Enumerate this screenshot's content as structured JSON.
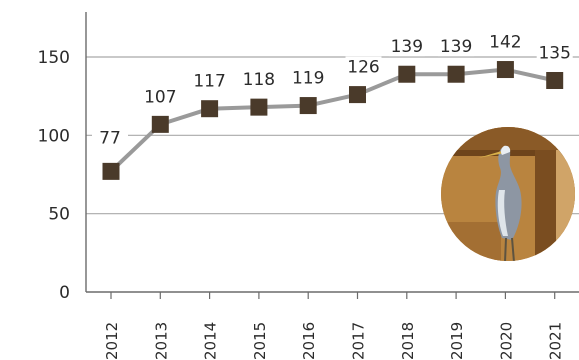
{
  "chart_data": {
    "type": "line",
    "x": [
      "2012",
      "2013",
      "2014",
      "2015",
      "2016",
      "2017",
      "2018",
      "2019",
      "2020",
      "2021"
    ],
    "series": [
      {
        "values": [
          77,
          107,
          117,
          118,
          119,
          126,
          139,
          139,
          142,
          135
        ]
      }
    ],
    "yticks": [
      "0",
      "50",
      "100",
      "150"
    ],
    "ylim": [
      0,
      150
    ],
    "grid": true,
    "colors": {
      "line": "#9a9a9a",
      "marker": "#4a3a2a",
      "grid": "#a9a9a9",
      "axis": "#6b6b6b"
    },
    "inset_image": "heron-photo"
  }
}
